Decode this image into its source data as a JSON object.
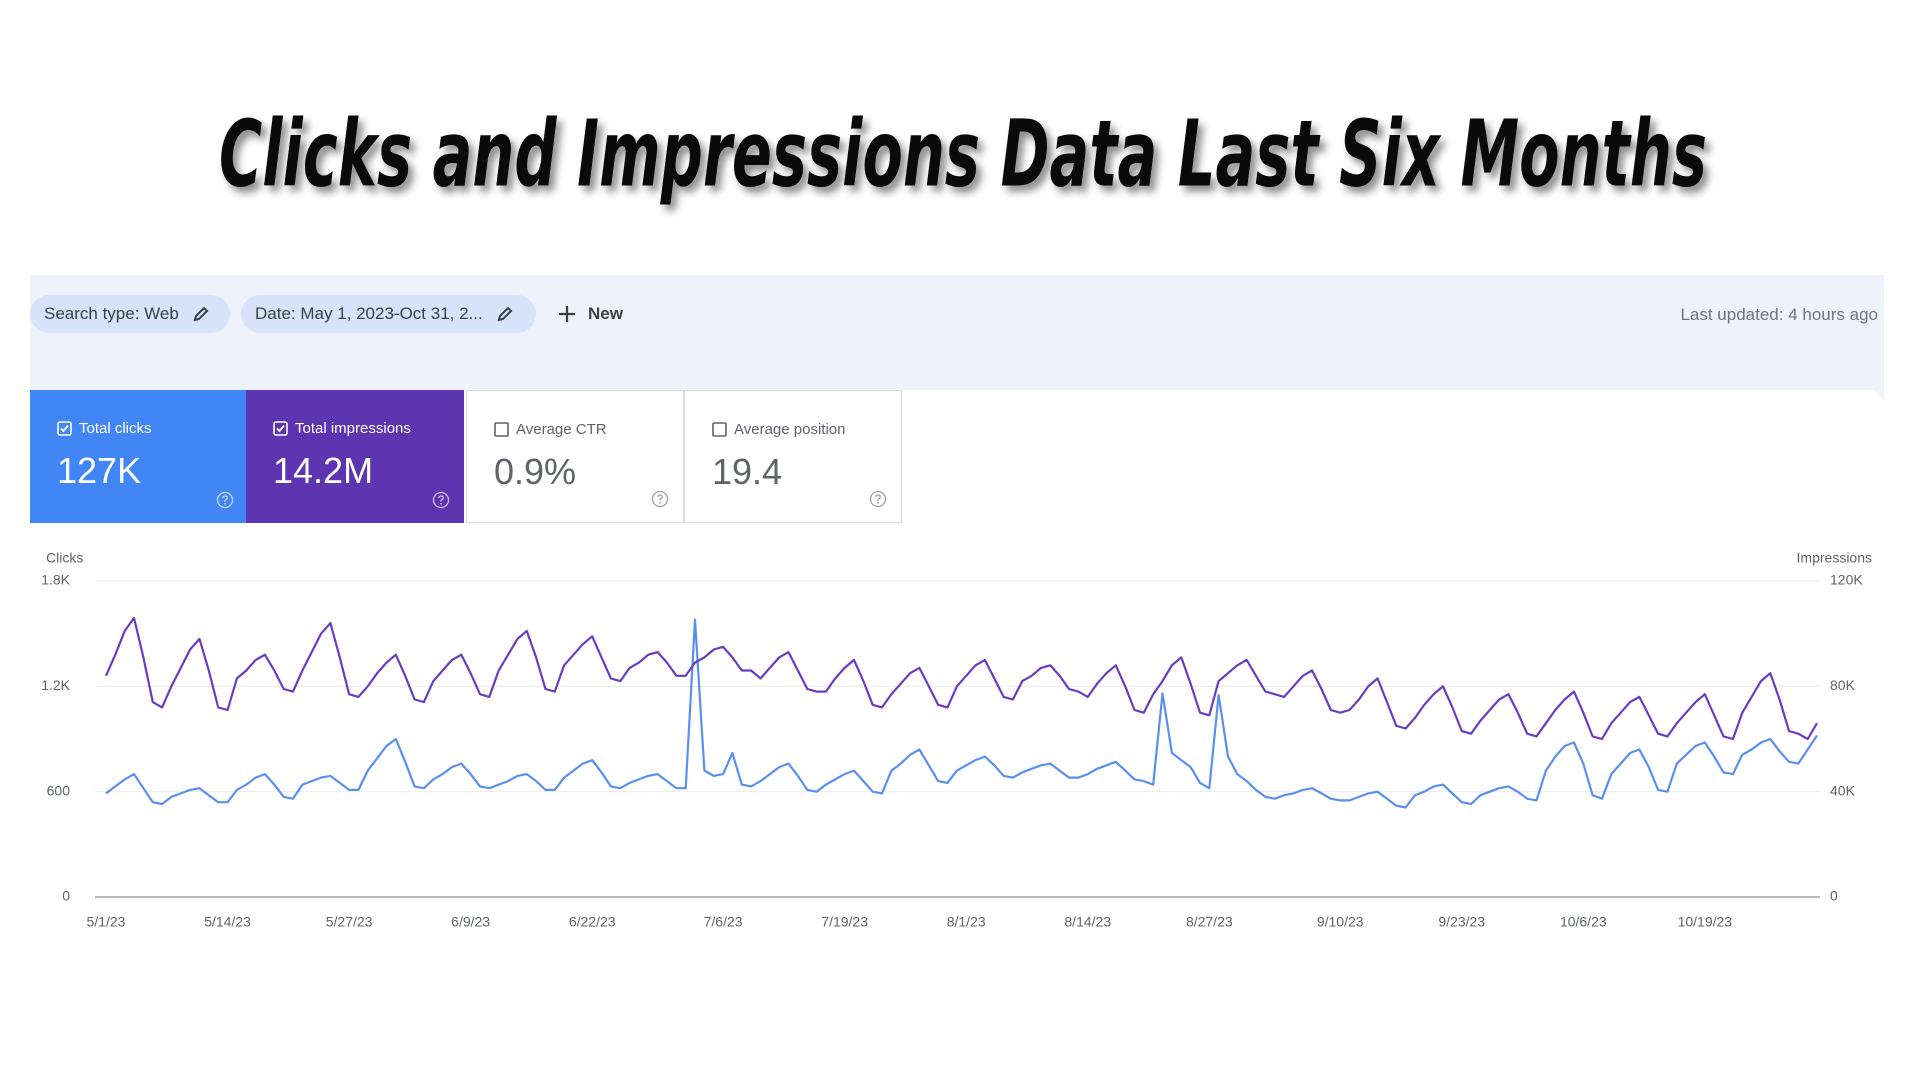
{
  "title": "Clicks and Impressions Data Last Six Months",
  "filters": [
    "Search type: Web",
    "Date: May 1, 2023-Oct 31, 2..."
  ],
  "new_button": "New",
  "last_updated": "Last updated: 4 hours ago",
  "metrics": [
    {
      "label": "Total clicks",
      "value": "127K",
      "checked": true,
      "color": "#4285f4"
    },
    {
      "label": "Total impressions",
      "value": "14.2M",
      "checked": true,
      "color": "#5e35b1"
    },
    {
      "label": "Average CTR",
      "value": "0.9%",
      "checked": false
    },
    {
      "label": "Average position",
      "value": "19.4",
      "checked": false
    }
  ],
  "chart_data": {
    "type": "line",
    "categories": [
      "5/1/23",
      null,
      null,
      null,
      null,
      null,
      null,
      null,
      null,
      null,
      null,
      null,
      null,
      "5/14/23",
      null,
      null,
      null,
      null,
      null,
      null,
      null,
      null,
      null,
      null,
      null,
      null,
      "5/27/23",
      null,
      null,
      null,
      null,
      null,
      null,
      null,
      null,
      null,
      null,
      null,
      null,
      "6/9/23",
      null,
      null,
      null,
      null,
      null,
      null,
      null,
      null,
      null,
      null,
      null,
      null,
      "6/22/23",
      null,
      null,
      null,
      null,
      null,
      null,
      null,
      null,
      null,
      null,
      null,
      null,
      null,
      "7/6/23",
      null,
      null,
      null,
      null,
      null,
      null,
      null,
      null,
      null,
      null,
      null,
      null,
      "7/19/23",
      null,
      null,
      null,
      null,
      null,
      null,
      null,
      null,
      null,
      null,
      null,
      null,
      "8/1/23",
      null,
      null,
      null,
      null,
      null,
      null,
      null,
      null,
      null,
      null,
      null,
      null,
      "8/14/23",
      null,
      null,
      null,
      null,
      null,
      null,
      null,
      null,
      null,
      null,
      null,
      null,
      "8/27/23",
      null,
      null,
      null,
      null,
      null,
      null,
      null,
      null,
      null,
      null,
      null,
      null,
      null,
      "9/10/23",
      null,
      null,
      null,
      null,
      null,
      null,
      null,
      null,
      null,
      null,
      null,
      null,
      "9/23/23",
      null,
      null,
      null,
      null,
      null,
      null,
      null,
      null,
      null,
      null,
      null,
      null,
      "10/6/23",
      null,
      null,
      null,
      null,
      null,
      null,
      null,
      null,
      null,
      null,
      null,
      null,
      "10/19/23",
      null,
      null,
      null,
      null,
      null,
      null,
      null,
      null,
      null,
      null,
      null,
      null
    ],
    "series": [
      {
        "name": "Clicks",
        "color": "#5a8ff0",
        "values": [
          590,
          630,
          670,
          700,
          620,
          540,
          530,
          570,
          590,
          610,
          620,
          580,
          540,
          540,
          610,
          640,
          680,
          700,
          640,
          570,
          560,
          640,
          660,
          680,
          690,
          650,
          610,
          610,
          720,
          790,
          860,
          900,
          770,
          630,
          620,
          670,
          700,
          740,
          760,
          700,
          630,
          620,
          640,
          660,
          690,
          700,
          660,
          610,
          610,
          680,
          720,
          760,
          780,
          710,
          630,
          620,
          650,
          670,
          690,
          700,
          660,
          620,
          620,
          1580,
          720,
          690,
          700,
          820,
          640,
          630,
          660,
          700,
          740,
          760,
          690,
          610,
          600,
          640,
          670,
          700,
          720,
          660,
          600,
          590,
          720,
          760,
          810,
          840,
          750,
          660,
          650,
          720,
          750,
          780,
          800,
          750,
          690,
          680,
          710,
          730,
          750,
          760,
          720,
          680,
          680,
          700,
          730,
          750,
          770,
          720,
          670,
          660,
          640,
          1160,
          820,
          780,
          740,
          650,
          620,
          1150,
          800,
          700,
          660,
          610,
          570,
          560,
          580,
          590,
          610,
          620,
          590,
          560,
          550,
          550,
          570,
          590,
          600,
          560,
          520,
          510,
          580,
          600,
          630,
          640,
          590,
          540,
          530,
          580,
          600,
          620,
          630,
          600,
          560,
          550,
          720,
          800,
          860,
          880,
          760,
          580,
          560,
          700,
          760,
          820,
          840,
          740,
          610,
          600,
          760,
          810,
          860,
          880,
          800,
          710,
          700,
          810,
          840,
          880,
          900,
          830,
          770,
          760,
          840,
          920
        ]
      },
      {
        "name": "Impressions",
        "color": "#6a3cc0",
        "axis": "y2",
        "values": [
          84000,
          92000,
          101000,
          106000,
          91000,
          74000,
          72000,
          80000,
          87000,
          94000,
          98000,
          86000,
          72000,
          71000,
          83000,
          86000,
          90000,
          92000,
          86000,
          79000,
          78000,
          86000,
          93000,
          100000,
          104000,
          91000,
          77000,
          76000,
          80000,
          85000,
          89000,
          92000,
          84000,
          75000,
          74000,
          82000,
          86000,
          90000,
          92000,
          85000,
          77000,
          76000,
          86000,
          92000,
          98000,
          101000,
          91000,
          79000,
          78000,
          88000,
          92000,
          96000,
          99000,
          91000,
          83000,
          82000,
          87000,
          89000,
          92000,
          93000,
          89000,
          84000,
          84000,
          89000,
          91000,
          94000,
          95000,
          91000,
          86000,
          86000,
          83000,
          87000,
          91000,
          93000,
          86000,
          79000,
          78000,
          78000,
          83000,
          87000,
          90000,
          82000,
          73000,
          72000,
          77000,
          81000,
          85000,
          87000,
          80000,
          73000,
          72000,
          80000,
          84000,
          88000,
          90000,
          83000,
          76000,
          75000,
          82000,
          84000,
          87000,
          88000,
          84000,
          79000,
          78000,
          76000,
          81000,
          85000,
          88000,
          80000,
          71000,
          70000,
          77000,
          82000,
          88000,
          91000,
          81000,
          70000,
          69000,
          82000,
          85000,
          88000,
          90000,
          84000,
          78000,
          77000,
          76000,
          80000,
          84000,
          86000,
          79000,
          71000,
          70000,
          71000,
          75000,
          80000,
          83000,
          74000,
          65000,
          64000,
          68000,
          73000,
          77000,
          80000,
          72000,
          63000,
          62000,
          67000,
          71000,
          75000,
          77000,
          70000,
          62000,
          61000,
          66000,
          71000,
          75000,
          78000,
          70000,
          61000,
          60000,
          66000,
          70000,
          74000,
          76000,
          69000,
          62000,
          61000,
          66000,
          70000,
          74000,
          77000,
          69000,
          61000,
          60000,
          70000,
          76000,
          82000,
          85000,
          75000,
          63000,
          62000,
          60000,
          66000
        ]
      }
    ],
    "ylim": [
      0,
      1800
    ],
    "yticks": [
      0,
      600,
      {
        "value": 1200,
        "label": "1.2K"
      },
      {
        "value": 1800,
        "label": "1.8K"
      }
    ],
    "y2lim": [
      0,
      120000
    ],
    "y2ticks": [
      0,
      {
        "value": 40000,
        "label": "40K"
      },
      {
        "value": 80000,
        "label": "80K"
      },
      {
        "value": 120000,
        "label": "120K"
      }
    ],
    "grid": true
  }
}
